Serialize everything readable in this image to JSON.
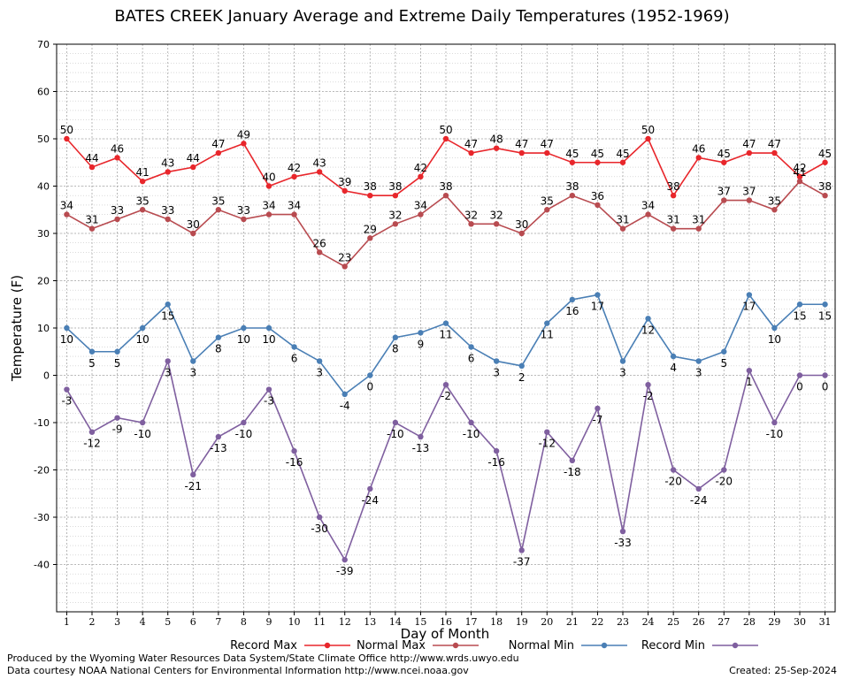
{
  "chart_data": {
    "type": "line",
    "title": "BATES CREEK January Average and Extreme Daily Temperatures (1952-1969)",
    "xlabel": "Day of Month",
    "ylabel": "Temperature (F)",
    "ylim": [
      -50,
      70
    ],
    "xlim": [
      0.6,
      31.4
    ],
    "yticks": [
      -40,
      -30,
      -20,
      -10,
      0,
      10,
      20,
      30,
      40,
      50,
      60,
      70
    ],
    "x": [
      1,
      2,
      3,
      4,
      5,
      6,
      7,
      8,
      9,
      10,
      11,
      12,
      13,
      14,
      15,
      16,
      17,
      18,
      19,
      20,
      21,
      22,
      23,
      24,
      25,
      26,
      27,
      28,
      29,
      30,
      31
    ],
    "grid": true,
    "legend_position": "bottom",
    "series": [
      {
        "name": "Record Max",
        "color": "#e8262b",
        "values": [
          50,
          44,
          46,
          41,
          43,
          44,
          47,
          49,
          40,
          42,
          43,
          39,
          38,
          38,
          42,
          50,
          47,
          48,
          47,
          47,
          45,
          45,
          45,
          50,
          38,
          46,
          45,
          47,
          47,
          42,
          45
        ]
      },
      {
        "name": "Normal Max",
        "color": "#b84b50",
        "values": [
          34,
          31,
          33,
          35,
          33,
          30,
          35,
          33,
          34,
          34,
          26,
          23,
          29,
          32,
          34,
          38,
          32,
          32,
          30,
          35,
          38,
          36,
          31,
          34,
          31,
          31,
          37,
          37,
          35,
          41,
          38
        ]
      },
      {
        "name": "Normal Min",
        "color": "#4a7fb5",
        "values": [
          10,
          5,
          5,
          10,
          15,
          3,
          8,
          10,
          10,
          6,
          3,
          -4,
          0,
          8,
          9,
          11,
          6,
          3,
          2,
          11,
          16,
          17,
          3,
          12,
          4,
          3,
          5,
          17,
          10,
          15,
          15
        ]
      },
      {
        "name": "Record Min",
        "color": "#7f5f9f",
        "values": [
          -3,
          -12,
          -9,
          -10,
          3,
          -21,
          -13,
          -10,
          -3,
          -16,
          -30,
          -39,
          -24,
          -10,
          -13,
          -2,
          -10,
          -16,
          -37,
          -12,
          -18,
          -7,
          -33,
          -2,
          -20,
          -24,
          -20,
          1,
          -10,
          0,
          0
        ]
      }
    ]
  },
  "footer": {
    "credit_line_1": "Produced by the Wyoming Water Resources Data System/State Climate Office http://www.wrds.uwyo.edu",
    "credit_line_2": "Data courtesy NOAA National Centers for Environmental Information http://www.ncei.noaa.gov",
    "created_label": "Created:",
    "created_date": "25-Sep-2024"
  }
}
